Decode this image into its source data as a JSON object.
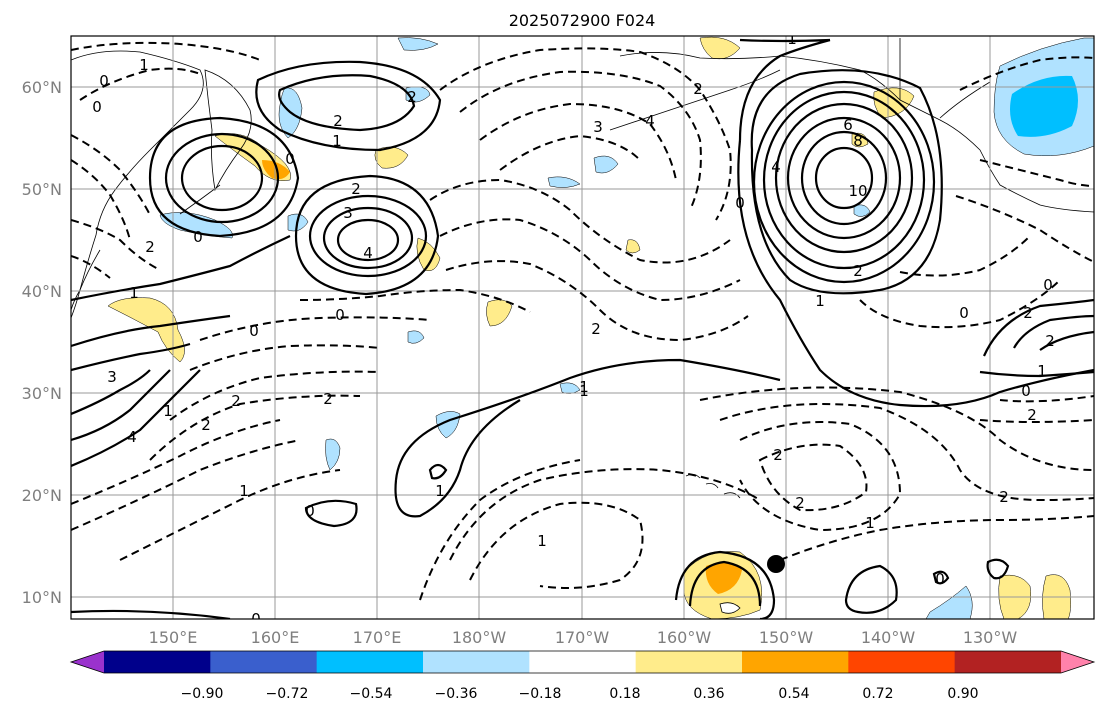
{
  "title": "2025072900 F024",
  "map": {
    "lat_labels": [
      "60°N",
      "50°N",
      "40°N",
      "30°N",
      "20°N",
      "10°N"
    ],
    "lon_labels": [
      "150°E",
      "160°E",
      "170°E",
      "180°W",
      "170°W",
      "160°W",
      "150°W",
      "140°W",
      "130°W"
    ]
  },
  "colorbar": {
    "ticks": [
      "−0.90",
      "−0.72",
      "−0.54",
      "−0.36",
      "−0.18",
      "0.18",
      "0.36",
      "0.54",
      "0.72",
      "0.90"
    ],
    "colors": [
      "#9a32cd",
      "#00008b",
      "#3a5fcd",
      "#00bfff",
      "#b0e2ff",
      "#ffffff",
      "#ffec8b",
      "#ffa500",
      "#ff4500",
      "#b22222",
      "#ff82ab"
    ]
  },
  "contour_labels": [
    "0",
    "1",
    "0",
    "2",
    "1",
    "2",
    "0",
    "2",
    "3",
    "4",
    "0",
    "2",
    "1",
    "3",
    "4",
    "2",
    "2",
    "1",
    "0",
    "2",
    "1",
    "3",
    "2",
    "4",
    "6",
    "8",
    "10",
    "4",
    "0",
    "2",
    "1",
    "0",
    "2",
    "0",
    "1",
    "2",
    "2",
    "2",
    "1",
    "2",
    "0",
    "1",
    "0",
    "1",
    "2",
    "1",
    "0",
    "2",
    "0",
    "1",
    "1",
    "0"
  ]
}
